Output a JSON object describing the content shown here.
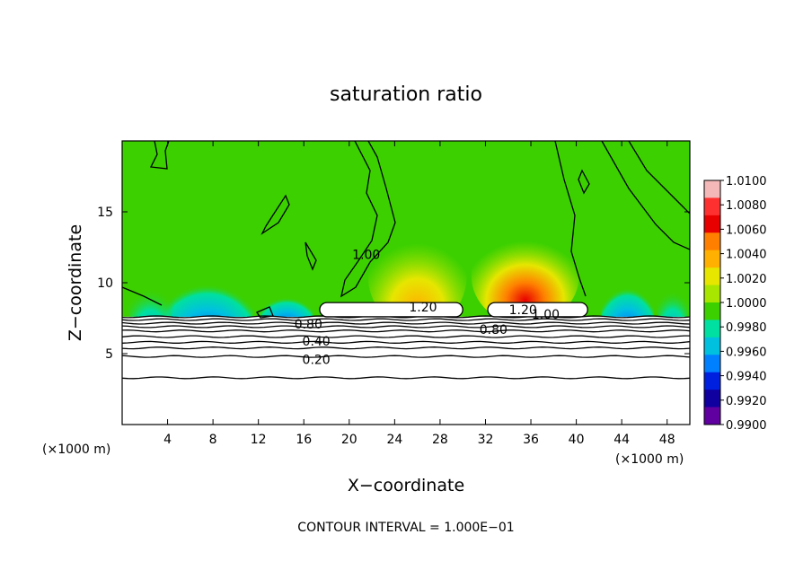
{
  "chart_data": {
    "type": "heatmap",
    "title": "saturation ratio",
    "xlabel": "X−coordinate",
    "ylabel": "Z−coordinate",
    "x_unit_label": "(×1000 m)",
    "z_unit_label": "(×1000 m)",
    "xlim": [
      0,
      50
    ],
    "ylim": [
      0,
      20
    ],
    "x_ticks": [
      4,
      8,
      12,
      16,
      20,
      24,
      28,
      32,
      36,
      40,
      44,
      48
    ],
    "y_ticks": [
      5,
      10,
      15
    ],
    "colorbar": {
      "levels": [
        "1.0100",
        "1.0080",
        "1.0060",
        "1.0040",
        "1.0020",
        "1.0000",
        "0.9980",
        "0.9960",
        "0.9940",
        "0.9920",
        "0.9900"
      ],
      "colors": [
        "#f4b8b8",
        "#ff3030",
        "#e80000",
        "#ff8000",
        "#ffb000",
        "#e6e600",
        "#a8e600",
        "#3cd000",
        "#00e0a0",
        "#00c0e0",
        "#0080ff",
        "#0020e0",
        "#1000a0",
        "#6000a0"
      ]
    },
    "contour_labels": [
      {
        "text": "1.20",
        "x": 26.5,
        "y": 8.3
      },
      {
        "text": "1.20",
        "x": 35.3,
        "y": 8.1
      },
      {
        "text": "1.00",
        "x": 21.5,
        "y": 12.0
      },
      {
        "text": "1.00",
        "x": 37.3,
        "y": 7.8
      },
      {
        "text": "0.80",
        "x": 16.4,
        "y": 7.1
      },
      {
        "text": "0.80",
        "x": 32.7,
        "y": 6.7
      },
      {
        "text": "0.40",
        "x": 17.1,
        "y": 5.9
      },
      {
        "text": "0.20",
        "x": 17.1,
        "y": 4.6
      }
    ],
    "footer": "CONTOUR INTERVAL =  1.000E−01"
  }
}
